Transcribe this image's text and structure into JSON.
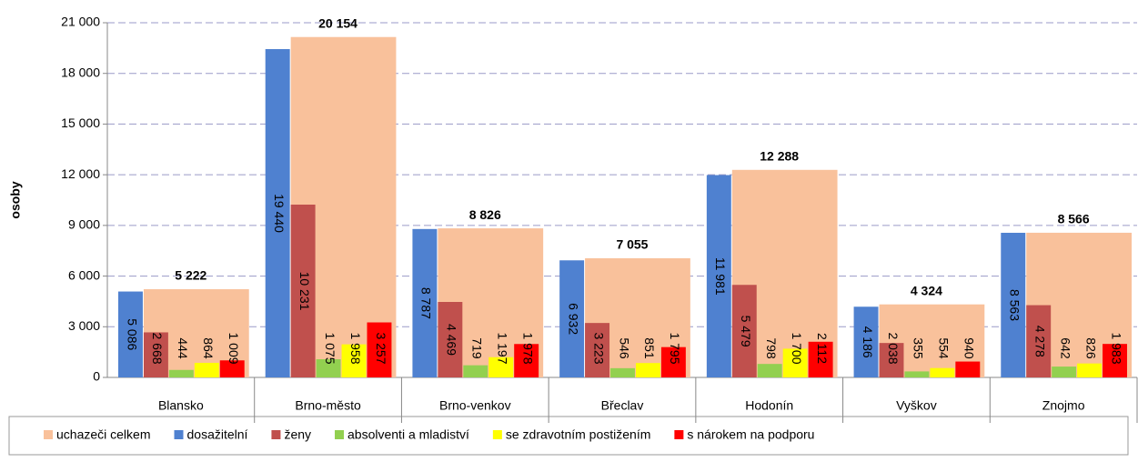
{
  "chart_data": {
    "type": "bar",
    "y_label": "osoby",
    "categories": [
      "Blansko",
      "Brno-město",
      "Brno-venkov",
      "Břeclav",
      "Hodonín",
      "Vyškov",
      "Znojmo"
    ],
    "series": [
      {
        "name": "uchazeči celkem",
        "color": "#f9c19b",
        "values": [
          5222,
          20154,
          8826,
          7055,
          12288,
          4324,
          8566
        ],
        "value_labels": [
          "5 222",
          "20 154",
          "8 826",
          "7 055",
          "12 288",
          "4 324",
          "8 566"
        ]
      },
      {
        "name": "dosažitelní",
        "color": "#4f81d0",
        "values": [
          5086,
          19440,
          8787,
          6932,
          11981,
          4186,
          8563
        ],
        "value_labels": [
          "5 086",
          "19 440",
          "8 787",
          "6 932",
          "11 981",
          "4 186",
          "8 563"
        ]
      },
      {
        "name": "ženy",
        "color": "#c0504d",
        "values": [
          2668,
          10231,
          4469,
          3223,
          5479,
          2038,
          4278
        ],
        "value_labels": [
          "2 668",
          "10 231",
          "4 469",
          "3 223",
          "5 479",
          "2 038",
          "4 278"
        ]
      },
      {
        "name": "absolventi a mladiství",
        "color": "#92d050",
        "values": [
          444,
          1075,
          719,
          546,
          798,
          355,
          642
        ],
        "value_labels": [
          "444",
          "1 075",
          "719",
          "546",
          "798",
          "355",
          "642"
        ]
      },
      {
        "name": "se zdravotním postižením",
        "color": "#ffff00",
        "values": [
          864,
          1958,
          1197,
          851,
          1700,
          554,
          826
        ],
        "value_labels": [
          "864",
          "1 958",
          "1 197",
          "851",
          "1 700",
          "554",
          "826"
        ]
      },
      {
        "name": "s nárokem na podporu",
        "color": "#ff0000",
        "values": [
          1009,
          3257,
          1978,
          1795,
          2112,
          940,
          1983
        ],
        "value_labels": [
          "1 009",
          "3 257",
          "1 978",
          "1 795",
          "2 112",
          "940",
          "1 983"
        ]
      }
    ],
    "ylim": [
      0,
      21000
    ],
    "yticks": [
      0,
      {
        "value": 3000,
        "label": "3 000"
      },
      {
        "value": 6000,
        "label": "6 000"
      },
      {
        "value": 9000,
        "label": "9 000"
      },
      {
        "value": 12000,
        "label": "12 000"
      },
      {
        "value": 15000,
        "label": "15 000"
      },
      {
        "value": 18000,
        "label": "18 000"
      },
      {
        "value": 21000,
        "label": "21 000"
      }
    ],
    "grid": true,
    "legend": "bottom"
  }
}
